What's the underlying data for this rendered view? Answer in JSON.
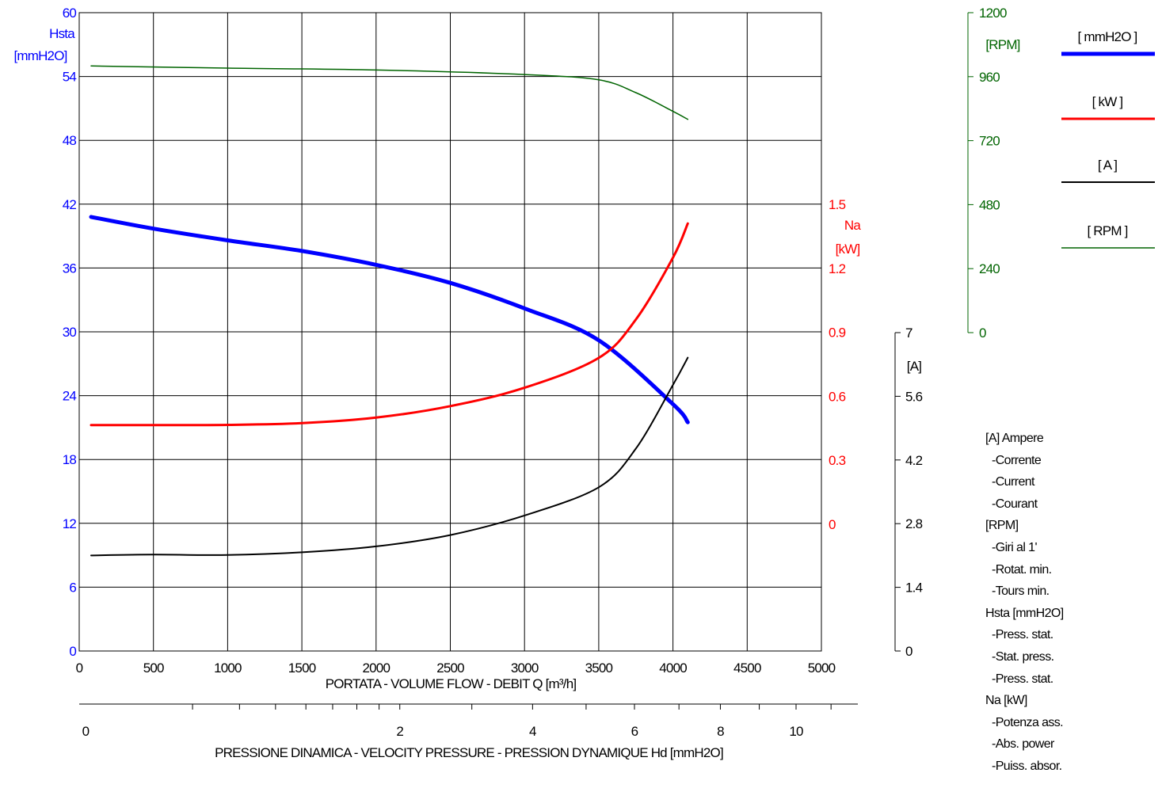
{
  "chart_data": {
    "type": "line",
    "x_axis": {
      "label": "PORTATA - VOLUME FLOW - DEBIT    Q [m³/h]",
      "ticks": [
        0,
        500,
        1000,
        1500,
        2000,
        2500,
        3000,
        3500,
        4000,
        4500,
        5000
      ],
      "range": [
        0,
        5000
      ]
    },
    "secondary_x_axis": {
      "label": "PRESSIONE DINAMICA - VELOCITY PRESSURE - PRESSION DYNAMIQUE   Hd [mmH2O]",
      "ticks": [
        0,
        2,
        4,
        6,
        8,
        10
      ],
      "scale": "sqrt"
    },
    "y_axes": [
      {
        "id": "hsta",
        "title": "Hsta",
        "unit": "[mmH2O]",
        "color": "#0000ff",
        "ticks": [
          0,
          6,
          12,
          18,
          24,
          30,
          36,
          42,
          48,
          54,
          60
        ],
        "range": [
          0,
          60
        ]
      },
      {
        "id": "na",
        "title": "Na",
        "unit": "[kW]",
        "color": "#ff0000",
        "ticks": [
          0,
          0.3,
          0.6,
          0.9,
          1.2,
          1.5
        ],
        "tick_labels": [
          "0",
          "0.3",
          "0.6",
          "0.9",
          "1.2",
          "1.5"
        ],
        "range": [
          0,
          1.5
        ]
      },
      {
        "id": "amp",
        "title": "",
        "unit": "[A]",
        "color": "#000000",
        "ticks": [
          0,
          1.4,
          2.8,
          4.2,
          5.6,
          7
        ],
        "tick_labels": [
          "0",
          "1.4",
          "2.8",
          "4.2",
          "5.6",
          "7"
        ],
        "range": [
          0,
          7
        ]
      },
      {
        "id": "rpm",
        "title": "",
        "unit": "[RPM]",
        "color": "#006400",
        "ticks": [
          0,
          240,
          480,
          720,
          960,
          1200
        ],
        "range": [
          0,
          1200
        ]
      }
    ],
    "grid": true,
    "series": [
      {
        "name": "[ mmH2O ]",
        "axis": "hsta",
        "color": "#0000ff",
        "x": [
          80,
          500,
          1000,
          1500,
          2000,
          2500,
          3000,
          3500,
          4000,
          4100
        ],
        "y": [
          40.8,
          39.7,
          38.6,
          37.6,
          36.3,
          34.6,
          32.2,
          29.2,
          23.2,
          21.5
        ]
      },
      {
        "name": "[ kW ]",
        "axis": "na",
        "color": "#ff0000",
        "x": [
          80,
          500,
          1000,
          1500,
          2000,
          2500,
          3000,
          3500,
          3750,
          4000,
          4100
        ],
        "y": [
          0.465,
          0.465,
          0.466,
          0.474,
          0.5,
          0.554,
          0.64,
          0.78,
          0.96,
          1.25,
          1.41
        ]
      },
      {
        "name": "[ A ]",
        "axis": "amp",
        "color": "#000000",
        "x": [
          80,
          500,
          1000,
          1500,
          2000,
          2500,
          3000,
          3500,
          3750,
          4000,
          4100
        ],
        "y": [
          2.1,
          2.12,
          2.11,
          2.17,
          2.3,
          2.55,
          2.98,
          3.6,
          4.45,
          5.85,
          6.45
        ]
      },
      {
        "name": "[ RPM ]",
        "axis": "rpm",
        "color": "#006400",
        "x": [
          80,
          1000,
          2000,
          3000,
          3500,
          3750,
          4000,
          4100
        ],
        "y": [
          1000,
          992,
          985,
          968,
          948,
          900,
          830,
          800
        ]
      }
    ],
    "legend_position": "right"
  },
  "notes": [
    {
      "head": "[A] Ampere",
      "lines": [
        "-Corrente",
        "-Current",
        "-Courant"
      ]
    },
    {
      "head": "[RPM]",
      "lines": [
        "-Giri al 1'",
        "-Rotat. min.",
        "-Tours min."
      ]
    },
    {
      "head": "Hsta [mmH2O]",
      "lines": [
        "-Press. stat.",
        "-Stat. press.",
        "-Press. stat."
      ]
    },
    {
      "head": "Na [kW]",
      "lines": [
        "-Potenza ass.",
        "-Abs. power",
        "-Puiss. absor."
      ]
    }
  ]
}
